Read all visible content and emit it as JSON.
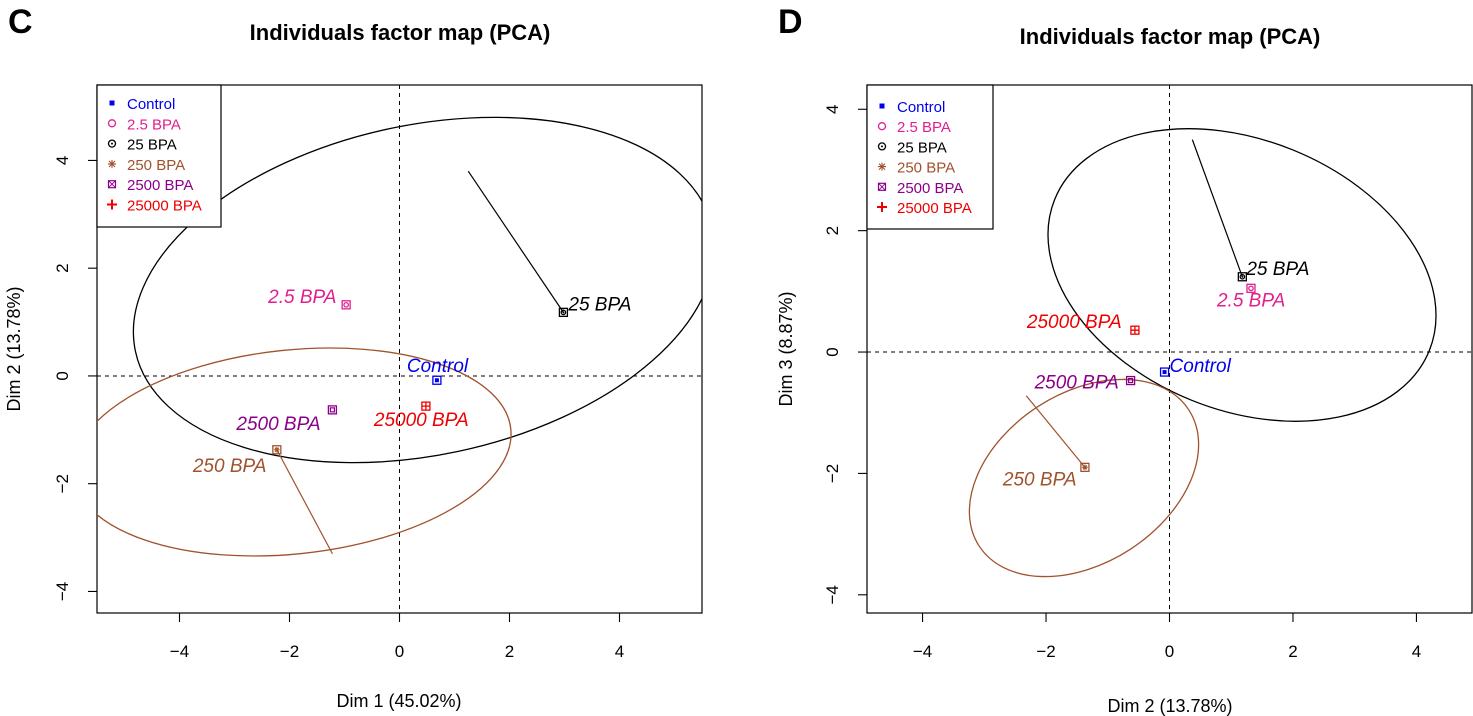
{
  "panels": [
    {
      "letter": "C",
      "title": "Individuals factor map (PCA)",
      "xlabel": "Dim 1 (45.02%)",
      "ylabel": "Dim 2 (13.78%)",
      "xticks": [
        "−4",
        "−2",
        "0",
        "2",
        "4"
      ],
      "yticks": [
        "−4",
        "−2",
        "0",
        "2",
        "4"
      ],
      "legend": [
        {
          "label": "Control",
          "color": "#0000ee",
          "symbol": "square-filled"
        },
        {
          "label": "2.5 BPA",
          "color": "#e0208f",
          "symbol": "circle"
        },
        {
          "label": "25 BPA",
          "color": "#000000",
          "symbol": "circle-dot"
        },
        {
          "label": "250 BPA",
          "color": "#a0522d",
          "symbol": "asterisk"
        },
        {
          "label": "2500 BPA",
          "color": "#8b008b",
          "symbol": "square-x"
        },
        {
          "label": "25000 BPA",
          "color": "#ee0000",
          "symbol": "plus"
        }
      ]
    },
    {
      "letter": "D",
      "title": "Individuals factor map (PCA)",
      "xlabel": "Dim 2 (13.78%)",
      "ylabel": "Dim 3 (8.87%)",
      "xticks": [
        "−4",
        "−2",
        "0",
        "2",
        "4"
      ],
      "yticks": [
        "−4",
        "−2",
        "0",
        "2",
        "4"
      ],
      "legend": [
        {
          "label": "Control",
          "color": "#0000ee",
          "symbol": "square-filled"
        },
        {
          "label": "2.5 BPA",
          "color": "#e0208f",
          "symbol": "circle"
        },
        {
          "label": "25 BPA",
          "color": "#000000",
          "symbol": "circle-dot"
        },
        {
          "label": "250 BPA",
          "color": "#a0522d",
          "symbol": "asterisk"
        },
        {
          "label": "2500 BPA",
          "color": "#8b008b",
          "symbol": "square-x"
        },
        {
          "label": "25000 BPA",
          "color": "#ee0000",
          "symbol": "plus"
        }
      ]
    }
  ],
  "chart_data": [
    {
      "type": "scatter",
      "title": "Individuals factor map (PCA)",
      "xlabel": "Dim 1 (45.02%)",
      "ylabel": "Dim 2 (13.78%)",
      "xlim": [
        -5.5,
        5.5
      ],
      "ylim": [
        -4.4,
        5.4
      ],
      "xticks": [
        -4,
        -2,
        0,
        2,
        4
      ],
      "yticks": [
        -4,
        -2,
        0,
        2,
        4
      ],
      "reference_lines": {
        "x": 0,
        "y": 0,
        "style": "dashed"
      },
      "legend_position": "top-left",
      "points": [
        {
          "label": "Control",
          "x": 0.68,
          "y": -0.08,
          "color": "#0000ee"
        },
        {
          "label": "2.5 BPA",
          "x": -0.97,
          "y": 1.32,
          "color": "#e0208f"
        },
        {
          "label": "25 BPA",
          "x": 2.98,
          "y": 1.18,
          "color": "#000000"
        },
        {
          "label": "250 BPA",
          "x": -2.23,
          "y": -1.37,
          "color": "#a0522d"
        },
        {
          "label": "2500 BPA",
          "x": -1.22,
          "y": -0.63,
          "color": "#8b008b"
        },
        {
          "label": "25000 BPA",
          "x": 0.48,
          "y": -0.56,
          "color": "#ee0000"
        }
      ],
      "ellipses": [
        {
          "group": "25 BPA",
          "color": "#000000",
          "center": [
            2.98,
            1.18
          ],
          "rx": 7.9,
          "ry": 2.5,
          "angle_deg": 20,
          "radius_to": [
            1.25,
            3.8
          ]
        },
        {
          "group": "250 BPA",
          "color": "#a0522d",
          "center": [
            -2.23,
            -1.37
          ],
          "rx": 4.6,
          "ry": 1.7,
          "angle_deg": 8,
          "radius_to": [
            -1.22,
            -3.3
          ]
        }
      ]
    },
    {
      "type": "scatter",
      "title": "Individuals factor map (PCA)",
      "xlabel": "Dim 2 (13.78%)",
      "ylabel": "Dim 3 (8.87%)",
      "xlim": [
        -4.9,
        4.9
      ],
      "ylim": [
        -4.3,
        4.4
      ],
      "xticks": [
        -4,
        -2,
        0,
        2,
        4
      ],
      "yticks": [
        -4,
        -2,
        0,
        2,
        4
      ],
      "reference_lines": {
        "x": 0,
        "y": 0,
        "style": "dashed"
      },
      "legend_position": "top-left",
      "points": [
        {
          "label": "Control",
          "x": -0.08,
          "y": -0.33,
          "color": "#0000ee"
        },
        {
          "label": "2.5 BPA",
          "x": 1.32,
          "y": 1.05,
          "color": "#e0208f"
        },
        {
          "label": "25 BPA",
          "x": 1.18,
          "y": 1.24,
          "color": "#000000"
        },
        {
          "label": "250 BPA",
          "x": -1.37,
          "y": -1.9,
          "color": "#a0522d"
        },
        {
          "label": "2500 BPA",
          "x": -0.63,
          "y": -0.47,
          "color": "#8b008b"
        },
        {
          "label": "25000 BPA",
          "x": -0.56,
          "y": 0.36,
          "color": "#ee0000"
        }
      ],
      "ellipses": [
        {
          "group": "25 BPA",
          "color": "#000000",
          "center": [
            1.18,
            1.24
          ],
          "rx": 3.2,
          "ry": 2.6,
          "angle_deg": -22,
          "radius_to": [
            0.37,
            3.5
          ]
        },
        {
          "group": "250 BPA",
          "color": "#a0522d",
          "center": [
            -1.37,
            -1.9
          ],
          "rx": 2.4,
          "ry": 1.9,
          "angle_deg": 35,
          "radius_to": [
            -2.32,
            -0.72
          ]
        }
      ]
    }
  ]
}
